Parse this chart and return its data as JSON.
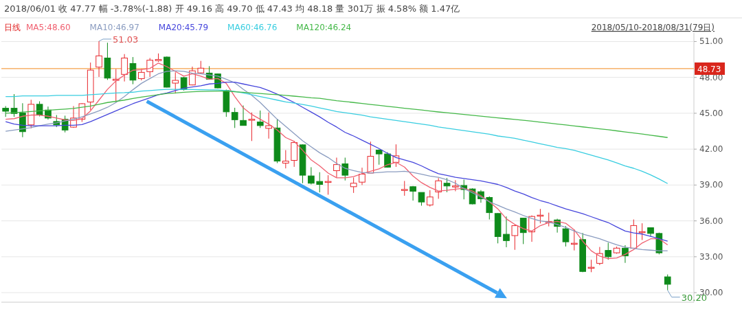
{
  "chart_data": {
    "type": "candlestick",
    "title": "2018/06/01 收 47.77 幅 -3.78%(-1.88) 开 49.16 高 49.70 低 47.43 均 48.18 量 301万 振 4.58% 额 1.47亿",
    "subtitle": "2018/05/10-2018/08/31(79日)",
    "annotations": [
      "日线",
      "51.03",
      "30.20"
    ],
    "categories": [
      null,
      null,
      null,
      null,
      null,
      null,
      null,
      null,
      null,
      null,
      null,
      null,
      null,
      null,
      null,
      null,
      null,
      null,
      null,
      null,
      null,
      null,
      null,
      null,
      null,
      null,
      null,
      null,
      null,
      null,
      null,
      null,
      null,
      null,
      null,
      null,
      null,
      null,
      null,
      null,
      null,
      null,
      null,
      null,
      null,
      null,
      null,
      null,
      null,
      null,
      null,
      null,
      null,
      null,
      null,
      null,
      null,
      null,
      null,
      null,
      null,
      null,
      null,
      null,
      null,
      null,
      null,
      null,
      null,
      null,
      null,
      null,
      null,
      null,
      null,
      null,
      null,
      null,
      null
    ],
    "ohlc": [
      [
        45.42,
        45.6,
        44.7,
        45.17
      ],
      [
        45.42,
        46.6,
        44.7,
        44.98
      ],
      [
        45.02,
        45.84,
        43.0,
        43.46
      ],
      [
        44.03,
        46.13,
        43.74,
        45.75
      ],
      [
        45.75,
        46.0,
        44.74,
        44.85
      ],
      [
        45.27,
        45.56,
        44.47,
        44.6
      ],
      [
        44.31,
        44.85,
        43.84,
        44.03
      ],
      [
        44.5,
        44.8,
        43.4,
        43.6
      ],
      [
        43.84,
        45.6,
        43.78,
        44.6
      ],
      [
        44.5,
        45.84,
        44.28,
        45.8
      ],
      [
        45.94,
        49.24,
        45.27,
        48.61
      ],
      [
        48.86,
        51.03,
        48.04,
        49.8
      ],
      [
        49.62,
        50.9,
        47.79,
        47.94
      ],
      [
        47.75,
        48.7,
        45.94,
        47.85
      ],
      [
        48.25,
        49.95,
        47.66,
        49.62
      ],
      [
        49.16,
        49.7,
        47.43,
        47.77
      ],
      [
        47.9,
        48.7,
        47.75,
        48.42
      ],
      [
        48.48,
        49.62,
        48.04,
        49.44
      ],
      [
        49.4,
        50.0,
        49.3,
        49.5
      ],
      [
        49.7,
        49.75,
        47.15,
        47.18
      ],
      [
        47.52,
        48.42,
        46.65,
        47.75
      ],
      [
        47.98,
        48.04,
        46.9,
        46.99
      ],
      [
        47.37,
        48.9,
        47.33,
        48.55
      ],
      [
        48.38,
        49.38,
        48.3,
        48.77
      ],
      [
        48.36,
        48.94,
        47.8,
        47.85
      ],
      [
        48.29,
        48.33,
        47.08,
        47.12
      ],
      [
        46.9,
        46.98,
        44.7,
        45.12
      ],
      [
        45.07,
        45.46,
        43.77,
        44.46
      ],
      [
        44.4,
        45.65,
        43.98,
        43.98
      ],
      [
        44.45,
        45.07,
        42.68,
        44.5
      ],
      [
        44.27,
        45.23,
        43.77,
        43.97
      ],
      [
        43.74,
        45.07,
        42.88,
        43.96
      ],
      [
        43.77,
        44.5,
        40.83,
        41.0
      ],
      [
        40.83,
        41.92,
        40.39,
        41.0
      ],
      [
        41.06,
        42.68,
        40.52,
        42.55
      ],
      [
        42.36,
        42.4,
        39.15,
        39.82
      ],
      [
        39.76,
        40.49,
        39.05,
        39.15
      ],
      [
        39.3,
        40.07,
        38.38,
        39.05
      ],
      [
        39.24,
        39.82,
        38.19,
        39.3
      ],
      [
        40.2,
        41.29,
        39.63,
        40.71
      ],
      [
        40.77,
        41.29,
        39.38,
        39.82
      ],
      [
        38.86,
        39.63,
        38.34,
        39.15
      ],
      [
        39.24,
        40.45,
        39.0,
        39.91
      ],
      [
        40.0,
        42.63,
        40.0,
        41.4
      ],
      [
        41.92,
        41.98,
        40.7,
        41.6
      ],
      [
        41.6,
        41.75,
        40.45,
        40.49
      ],
      [
        40.9,
        42.4,
        40.52,
        41.44
      ],
      [
        38.6,
        39.34,
        38.1,
        38.63
      ],
      [
        38.86,
        38.92,
        37.7,
        38.48
      ],
      [
        38.38,
        38.38,
        37.27,
        37.58
      ],
      [
        37.33,
        38.57,
        37.2,
        38.0
      ],
      [
        38.42,
        39.58,
        37.85,
        39.35
      ],
      [
        39.15,
        39.58,
        38.4,
        38.92
      ],
      [
        38.88,
        39.4,
        38.48,
        38.92
      ],
      [
        38.96,
        39.45,
        37.8,
        38.62
      ],
      [
        38.67,
        38.73,
        37.38,
        37.42
      ],
      [
        38.44,
        38.58,
        37.52,
        37.85
      ],
      [
        37.96,
        38.05,
        36.12,
        36.69
      ],
      [
        36.62,
        36.66,
        34.12,
        34.69
      ],
      [
        34.88,
        36.37,
        33.8,
        34.35
      ],
      [
        34.77,
        35.7,
        33.58,
        35.6
      ],
      [
        36.23,
        36.23,
        34.06,
        35.02
      ],
      [
        35.08,
        36.46,
        34.25,
        36.37
      ],
      [
        36.44,
        37.0,
        35.79,
        36.48
      ],
      [
        35.9,
        36.69,
        35.54,
        35.94
      ],
      [
        36.08,
        36.18,
        35.02,
        35.54
      ],
      [
        35.34,
        35.57,
        33.86,
        34.25
      ],
      [
        34.1,
        35.28,
        33.53,
        34.13
      ],
      [
        34.44,
        34.99,
        31.71,
        31.77
      ],
      [
        32.08,
        32.75,
        31.71,
        32.12
      ],
      [
        32.45,
        33.82,
        32.3,
        33.27
      ],
      [
        33.53,
        34.17,
        32.75,
        33.0
      ],
      [
        33.33,
        33.85,
        33.25,
        33.72
      ],
      [
        33.72,
        33.97,
        32.49,
        33.08
      ],
      [
        33.72,
        36.12,
        33.68,
        35.61
      ],
      [
        35.06,
        35.8,
        34.4,
        35.1
      ],
      [
        35.43,
        35.43,
        34.7,
        34.95
      ],
      [
        34.95,
        35.02,
        33.2,
        33.33
      ],
      [
        31.32,
        31.52,
        30.2,
        30.7
      ]
    ],
    "series": [
      {
        "name": "MA5:48.60",
        "type": "line",
        "color": "#f06070",
        "values": [
          44.5,
          44.55,
          44.75,
          44.85,
          44.85,
          44.75,
          44.6,
          44.45,
          44.4,
          44.55,
          45.2,
          46.1,
          47.0,
          47.7,
          48.2,
          48.6,
          48.65,
          48.75,
          49.2,
          48.9,
          48.5,
          48.1,
          48.3,
          48.1,
          47.85,
          47.9,
          47.5,
          46.4,
          45.45,
          44.9,
          44.5,
          44.1,
          43.6,
          42.97,
          42.65,
          41.9,
          41.1,
          40.6,
          40.0,
          39.6,
          39.6,
          39.7,
          39.95,
          40.15,
          40.35,
          40.7,
          40.9,
          40.5,
          39.75,
          39.2,
          38.8,
          38.5,
          38.55,
          38.65,
          38.73,
          38.5,
          38.1,
          37.6,
          37.0,
          36.17,
          35.7,
          35.35,
          35.15,
          35.6,
          35.85,
          35.96,
          35.8,
          35.25,
          34.3,
          33.5,
          33.05,
          32.84,
          32.9,
          33.2,
          33.6,
          34.15,
          34.5,
          34.5,
          34.0
        ]
      },
      {
        "name": "MA10:46.97",
        "type": "line",
        "color": "#8a9cc0",
        "values": [
          43.5,
          43.6,
          43.7,
          43.8,
          43.95,
          44.1,
          44.2,
          44.35,
          44.5,
          44.7,
          44.95,
          45.2,
          45.5,
          45.9,
          46.4,
          46.97,
          47.5,
          47.9,
          48.3,
          48.5,
          48.55,
          48.5,
          48.35,
          48.3,
          48.2,
          48.1,
          47.85,
          47.55,
          47.0,
          46.5,
          45.9,
          45.2,
          44.5,
          43.9,
          43.3,
          42.7,
          42.2,
          41.7,
          41.3,
          40.8,
          40.4,
          40.2,
          40.05,
          40.0,
          40.05,
          40.1,
          40.1,
          40.15,
          40.05,
          39.9,
          39.75,
          39.65,
          39.45,
          39.15,
          38.7,
          38.35,
          38.0,
          37.6,
          37.3,
          37.0,
          36.75,
          36.45,
          36.2,
          36.0,
          35.9,
          35.7,
          35.45,
          35.15,
          34.9,
          34.7,
          34.5,
          34.25,
          34.0,
          33.8,
          33.7,
          33.6,
          33.55,
          33.5,
          33.5
        ]
      },
      {
        "name": "MA20:45.79",
        "type": "line",
        "color": "#4646dc",
        "values": [
          44.3,
          44.1,
          44.0,
          43.95,
          43.95,
          43.95,
          43.95,
          44.0,
          44.0,
          44.05,
          44.3,
          44.6,
          44.9,
          45.2,
          45.5,
          45.8,
          46.05,
          46.3,
          46.55,
          46.7,
          46.9,
          47.1,
          47.2,
          47.3,
          47.45,
          47.5,
          47.6,
          47.6,
          47.45,
          47.3,
          47.15,
          46.9,
          46.6,
          46.25,
          45.9,
          45.5,
          45.1,
          44.7,
          44.25,
          43.85,
          43.4,
          43.1,
          42.75,
          42.4,
          42.05,
          41.65,
          41.3,
          41.1,
          40.9,
          40.6,
          40.25,
          39.95,
          39.8,
          39.65,
          39.55,
          39.45,
          39.35,
          39.2,
          39.05,
          38.8,
          38.5,
          38.25,
          37.95,
          37.7,
          37.5,
          37.25,
          37.0,
          36.8,
          36.6,
          36.35,
          36.1,
          35.86,
          35.5,
          35.15,
          35.0,
          34.9,
          34.7,
          34.5,
          34.3
        ]
      },
      {
        "name": "MA60:46.76",
        "type": "line",
        "color": "#38cde0",
        "values": [
          46.4,
          46.4,
          46.45,
          46.45,
          46.45,
          46.45,
          46.5,
          46.5,
          46.5,
          46.5,
          46.55,
          46.6,
          46.65,
          46.7,
          46.72,
          46.76,
          46.85,
          46.9,
          46.95,
          47.0,
          47.0,
          47.0,
          46.98,
          46.97,
          46.96,
          46.95,
          46.9,
          46.83,
          46.7,
          46.55,
          46.4,
          46.25,
          46.1,
          45.95,
          45.85,
          45.74,
          45.6,
          45.45,
          45.3,
          45.15,
          45.05,
          44.95,
          44.85,
          44.7,
          44.6,
          44.5,
          44.4,
          44.3,
          44.2,
          44.1,
          44.0,
          43.85,
          43.75,
          43.65,
          43.55,
          43.45,
          43.35,
          43.25,
          43.1,
          43.0,
          42.9,
          42.75,
          42.6,
          42.45,
          42.3,
          42.15,
          42.05,
          41.9,
          41.7,
          41.5,
          41.3,
          41.1,
          40.85,
          40.6,
          40.4,
          40.15,
          39.85,
          39.5,
          39.12
        ]
      },
      {
        "name": "MA120:46.24",
        "type": "line",
        "color": "#44b848",
        "values": [
          45.0,
          45.05,
          45.1,
          45.15,
          45.2,
          45.25,
          45.3,
          45.35,
          45.4,
          45.5,
          45.6,
          45.75,
          45.9,
          46.0,
          46.1,
          46.24,
          46.35,
          46.45,
          46.55,
          46.65,
          46.7,
          46.75,
          46.8,
          46.82,
          46.84,
          46.85,
          46.85,
          46.8,
          46.75,
          46.7,
          46.65,
          46.6,
          46.55,
          46.5,
          46.43,
          46.37,
          46.3,
          46.25,
          46.15,
          46.05,
          45.98,
          45.9,
          45.82,
          45.74,
          45.66,
          45.58,
          45.5,
          45.42,
          45.35,
          45.27,
          45.19,
          45.11,
          45.04,
          44.97,
          44.9,
          44.83,
          44.76,
          44.69,
          44.62,
          44.55,
          44.48,
          44.41,
          44.34,
          44.26,
          44.18,
          44.1,
          44.02,
          43.94,
          43.86,
          43.78,
          43.7,
          43.62,
          43.53,
          43.44,
          43.35,
          43.26,
          43.17,
          43.07,
          42.97
        ]
      }
    ],
    "ylim": [
      29.2,
      51.6
    ],
    "yticks": [
      {
        "value": 30,
        "label": "30.00"
      },
      {
        "value": 33,
        "label": "33.00"
      },
      {
        "value": 36,
        "label": "36.00"
      },
      {
        "value": 39,
        "label": "39.00"
      },
      {
        "value": 42,
        "label": "42.00"
      },
      {
        "value": 45,
        "label": "45.00"
      },
      {
        "value": 48,
        "label": "48.00"
      },
      {
        "value": 51,
        "label": "51.00"
      }
    ],
    "tick_labels": "y",
    "grid": "y",
    "legend": "top",
    "ref_lines": [
      {
        "axis": "y",
        "value": 48.73,
        "label": "48.73",
        "color": "#f5a04a"
      }
    ]
  }
}
